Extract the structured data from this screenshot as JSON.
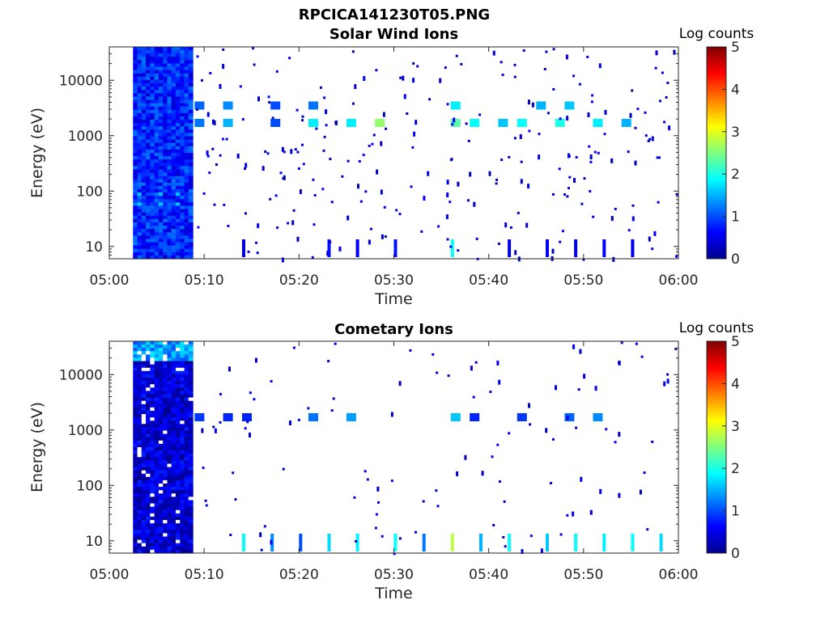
{
  "figure_title": "RPCICA141230T05.PNG",
  "chart_data": [
    {
      "type": "heatmap",
      "title": "Solar Wind Ions",
      "xlabel": "Time",
      "ylabel": "Energy (eV)",
      "yscale": "log",
      "xlim": [
        "05:00",
        "06:00"
      ],
      "ylim": [
        6,
        40000
      ],
      "xticks": [
        "05:00",
        "05:10",
        "05:20",
        "05:30",
        "05:40",
        "05:50",
        "06:00"
      ],
      "yticks": [
        "10",
        "100",
        "1000",
        "10000"
      ],
      "colorbar": {
        "label": "Log counts",
        "range": [
          0,
          5
        ],
        "ticks": [
          "0",
          "1",
          "2",
          "3",
          "4",
          "5"
        ],
        "colormap": "jet"
      },
      "dense_interval": {
        "start": "05:02.5",
        "end": "05:08.8",
        "energy_range": [
          6,
          40000
        ],
        "typical_log_counts": 0.8,
        "peak_log_counts": 1.6
      },
      "bands": [
        {
          "energy": 1700,
          "times": [
            "05:09",
            "05:12",
            "05:17",
            "05:21",
            "05:25",
            "05:28",
            "05:36",
            "05:38",
            "05:41",
            "05:43",
            "05:47",
            "05:51",
            "05:54"
          ],
          "log_counts": [
            1.2,
            1.5,
            1.0,
            1.8,
            1.8,
            2.6,
            2.3,
            1.9,
            1.6,
            1.9,
            2.0,
            1.8,
            1.5
          ]
        },
        {
          "energy": 3500,
          "times": [
            "05:09",
            "05:12",
            "05:17",
            "05:21",
            "05:36",
            "05:45",
            "05:48"
          ],
          "log_counts": [
            1.1,
            1.3,
            1.0,
            1.2,
            1.8,
            1.5,
            1.6
          ]
        },
        {
          "energy": 8,
          "times": [
            "05:14",
            "05:23",
            "05:26",
            "05:30",
            "05:36",
            "05:42",
            "05:46",
            "05:49",
            "05:52",
            "05:55"
          ],
          "log_counts": [
            0.6,
            0.7,
            0.6,
            0.7,
            1.9,
            0.6,
            0.6,
            0.6,
            0.6,
            0.6
          ]
        }
      ]
    },
    {
      "type": "heatmap",
      "title": "Cometary Ions",
      "xlabel": "Time",
      "ylabel": "Energy (eV)",
      "yscale": "log",
      "xlim": [
        "05:00",
        "06:00"
      ],
      "ylim": [
        6,
        40000
      ],
      "xticks": [
        "05:00",
        "05:10",
        "05:20",
        "05:30",
        "05:40",
        "05:50",
        "06:00"
      ],
      "yticks": [
        "10",
        "100",
        "1000",
        "10000"
      ],
      "colorbar": {
        "label": "Log counts",
        "range": [
          0,
          5
        ],
        "ticks": [
          "0",
          "1",
          "2",
          "3",
          "4",
          "5"
        ],
        "colormap": "jet"
      },
      "dense_interval": {
        "start": "05:02.5",
        "end": "05:08.8",
        "energy_range": [
          6,
          40000
        ],
        "typical_log_counts": 0.4,
        "peak_log_counts": 1.8
      },
      "bands": [
        {
          "energy": 1700,
          "times": [
            "05:09",
            "05:12",
            "05:14",
            "05:21",
            "05:25",
            "05:36",
            "05:38",
            "05:43",
            "05:48",
            "05:51"
          ],
          "log_counts": [
            0.9,
            0.8,
            0.8,
            1.2,
            1.4,
            1.6,
            0.8,
            0.9,
            1.1,
            1.3
          ]
        },
        {
          "energy": 10,
          "times": [
            "05:14",
            "05:17",
            "05:20",
            "05:23",
            "05:26",
            "05:30",
            "05:33",
            "05:36",
            "05:39",
            "05:42",
            "05:46",
            "05:49",
            "05:52",
            "05:55",
            "05:58"
          ],
          "log_counts": [
            1.9,
            1.3,
            1.0,
            1.7,
            1.8,
            1.9,
            1.2,
            2.8,
            1.5,
            1.9,
            1.6,
            1.9,
            1.8,
            1.9,
            1.7
          ]
        }
      ]
    }
  ]
}
